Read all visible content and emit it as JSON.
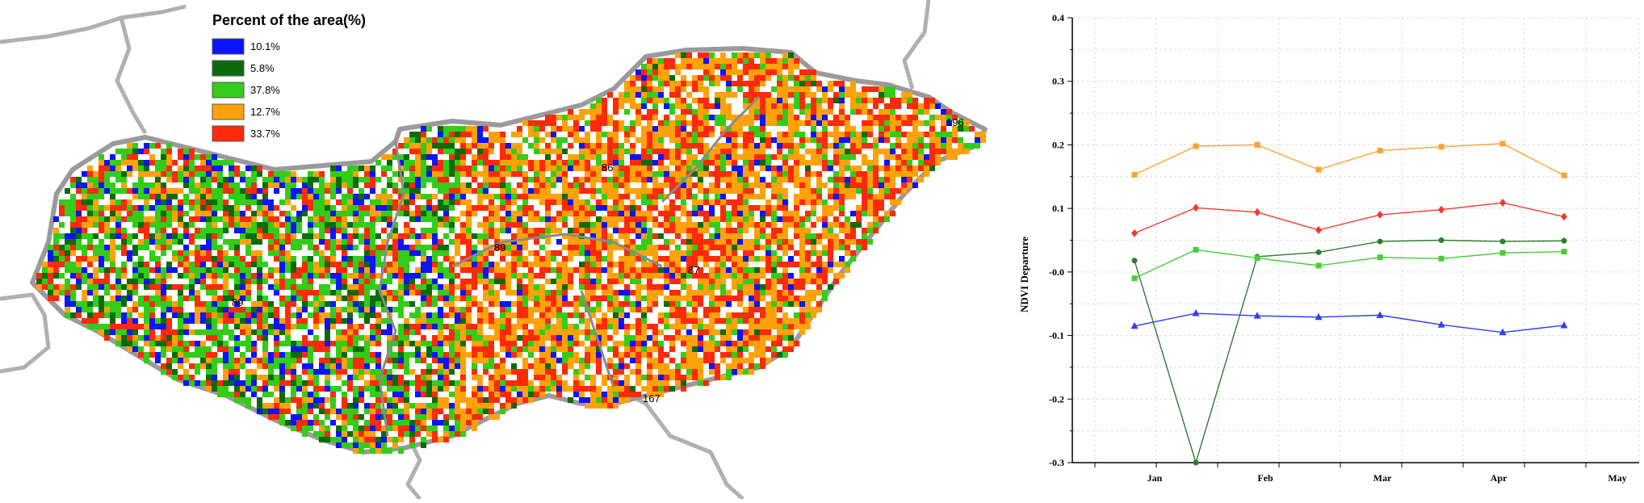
{
  "map": {
    "legend": {
      "title": "Percent of the area(%)",
      "items": [
        {
          "label": "10.1%",
          "color": "#0a14ff"
        },
        {
          "label": "5.8%",
          "color": "#0b6b0b"
        },
        {
          "label": "37.8%",
          "color": "#33cc19"
        },
        {
          "label": "12.7%",
          "color": "#ffa20a"
        },
        {
          "label": "33.7%",
          "color": "#ff2a0a"
        }
      ]
    },
    "region_labels": [
      "196",
      "89",
      "86",
      "87",
      "89",
      "167"
    ]
  },
  "chart_data": {
    "type": "line",
    "title": "",
    "xlabel": "",
    "ylabel": "NDVI Departure",
    "ylim": [
      -0.3,
      0.4
    ],
    "yticks": [
      -0.3,
      -0.2,
      -0.1,
      0.0,
      0.1,
      0.2,
      0.3,
      0.4
    ],
    "ytick_labels": [
      "-0.3",
      "-0.2",
      "-0.1",
      "-0.0",
      "0.1",
      "0.2",
      "0.3",
      "0.4"
    ],
    "x_categories": [
      "Jan",
      "Feb",
      "Mar",
      "Apr",
      "May"
    ],
    "x": [
      1,
      2,
      3,
      4,
      5,
      6,
      7,
      8
    ],
    "grid": true,
    "series": [
      {
        "color": "#ffa22e",
        "marker": "square",
        "values": [
          0.153,
          0.198,
          0.2,
          0.161,
          0.191,
          0.197,
          0.202,
          0.152
        ]
      },
      {
        "color": "#f53a2a",
        "marker": "diamond",
        "values": [
          0.061,
          0.101,
          0.094,
          0.066,
          0.09,
          0.098,
          0.109,
          0.087
        ]
      },
      {
        "color": "#2e7d2e",
        "marker": "circle",
        "values": [
          0.018,
          -0.3,
          0.024,
          0.031,
          0.048,
          0.05,
          0.048,
          0.049
        ]
      },
      {
        "color": "#49cc39",
        "marker": "square",
        "values": [
          -0.01,
          0.035,
          0.022,
          0.01,
          0.023,
          0.021,
          0.03,
          0.032
        ]
      },
      {
        "color": "#2e3ff0",
        "marker": "triangle",
        "values": [
          -0.085,
          -0.065,
          -0.069,
          -0.071,
          -0.068,
          -0.083,
          -0.095,
          -0.084
        ]
      }
    ]
  }
}
